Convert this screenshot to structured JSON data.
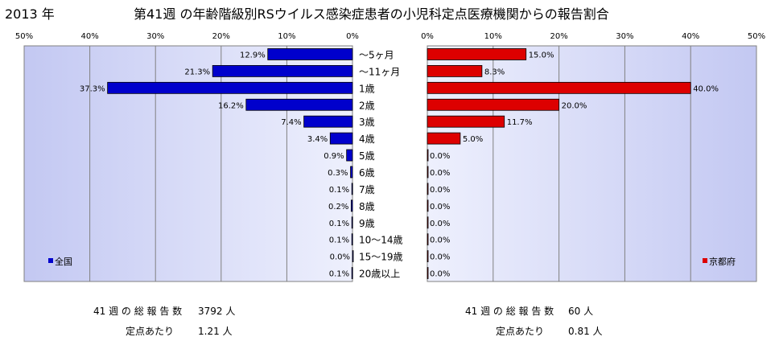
{
  "year_label": "2013 年",
  "title": "第41週 の年齢階級別RSウイルス感染症患者の小児科定点医療機関からの報告割合",
  "chart_data": {
    "type": "bar",
    "categories": [
      "～5ヶ月",
      "～11ヶ月",
      "1歳",
      "2歳",
      "3歳",
      "4歳",
      "5歳",
      "6歳",
      "7歳",
      "8歳",
      "9歳",
      "10～14歳",
      "15～19歳",
      "20歳以上"
    ],
    "xlim": [
      0,
      50
    ],
    "x_ticks": [
      "0%",
      "10%",
      "20%",
      "30%",
      "40%",
      "50%"
    ],
    "grid": true,
    "series": [
      {
        "name": "全国",
        "color": "#0000cc",
        "side": "left",
        "legend_position": "bottom-left",
        "values": [
          12.9,
          21.3,
          37.3,
          16.2,
          7.4,
          3.4,
          0.9,
          0.3,
          0.1,
          0.2,
          0.1,
          0.1,
          0.0,
          0.1
        ],
        "labels": [
          "12.9%",
          "21.3%",
          "37.3%",
          "16.2%",
          "7.4%",
          "3.4%",
          "0.9%",
          "0.3%",
          "0.1%",
          "0.2%",
          "0.1%",
          "0.1%",
          "0.0%",
          "0.1%"
        ]
      },
      {
        "name": "京都府",
        "color": "#dd0000",
        "side": "right",
        "legend_position": "bottom-right",
        "values": [
          15.0,
          8.3,
          40.0,
          20.0,
          11.7,
          5.0,
          0.0,
          0.0,
          0.0,
          0.0,
          0.0,
          0.0,
          0.0,
          0.0
        ],
        "labels": [
          "15.0%",
          "8.3%",
          "40.0%",
          "20.0%",
          "11.7%",
          "5.0%",
          "0.0%",
          "0.0%",
          "0.0%",
          "0.0%",
          "0.0%",
          "0.0%",
          "0.0%",
          "0.0%"
        ]
      }
    ]
  },
  "summary": {
    "national": {
      "reports_label": "41 週 の 総 報 告 数",
      "reports_value": "3792 人",
      "per_site_label": "定点あたり",
      "per_site_value": "1.21 人"
    },
    "kyoto": {
      "reports_label": "41 週 の 総 報 告 数",
      "reports_value": "60 人",
      "per_site_label": "定点あたり",
      "per_site_value": "0.81 人"
    }
  }
}
